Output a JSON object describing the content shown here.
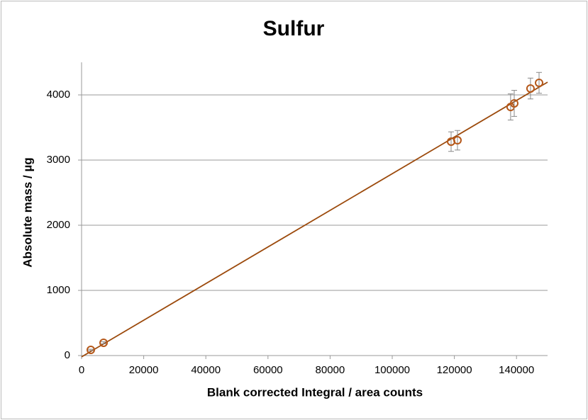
{
  "chart_data": {
    "type": "scatter",
    "title": "Sulfur",
    "x_label": "Blank corrected Integral / area counts",
    "y_label": "Absolute mass / µg",
    "xlim": [
      0,
      150000
    ],
    "xticks": [
      0,
      20000,
      40000,
      60000,
      80000,
      100000,
      120000,
      140000
    ],
    "ylim": [
      0,
      4500
    ],
    "yticks": [
      0,
      1000,
      2000,
      3000,
      4000
    ],
    "grid": true,
    "series": [
      {
        "color": "#b5581a",
        "x": [
          2970,
          7080,
          118950,
          121000,
          138100,
          139270,
          144500,
          147260
        ],
        "values": [
          87,
          196,
          3283,
          3304,
          3815,
          3870,
          4098,
          4185
        ],
        "errors": [
          10,
          15,
          150,
          150,
          200,
          200,
          160,
          160
        ]
      }
    ],
    "fit": {
      "color": "#9c4a0c",
      "x": [
        0,
        150000
      ],
      "values": [
        -20,
        4196
      ]
    }
  }
}
